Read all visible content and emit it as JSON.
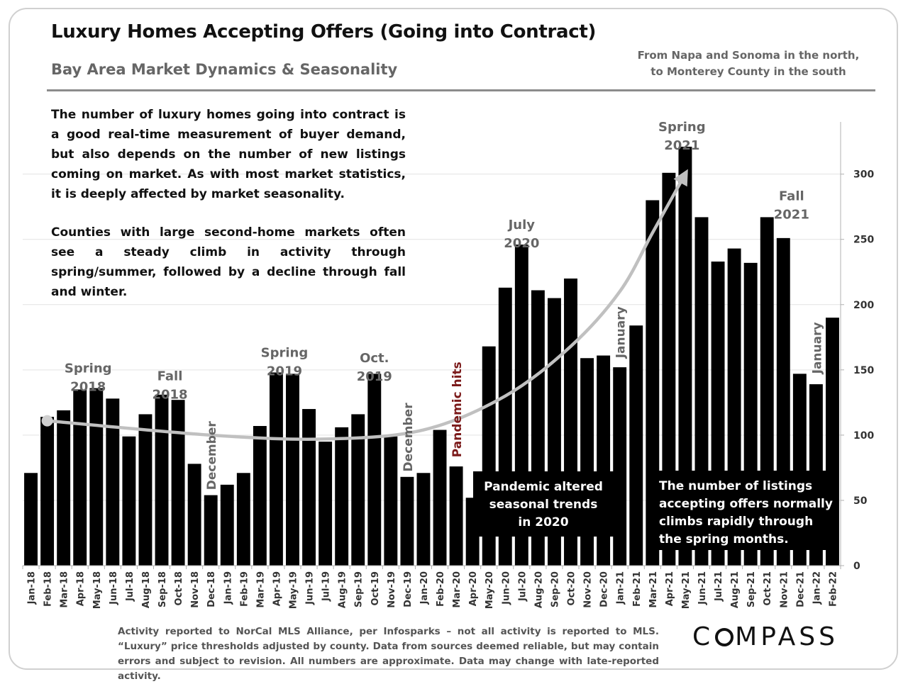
{
  "header": {
    "title": "Luxury Homes Accepting Offers (Going into Contract)",
    "subtitle": "Bay Area Market Dynamics & Seasonality",
    "region_line1": "From Napa and Sonoma in the north,",
    "region_line2": "to Monterey County in the south"
  },
  "description": {
    "paragraph1": "The number of luxury homes going into contract is a good real-time measurement of buyer demand, but also depends on the number of new listings coming on market. As with most market statistics, it is deeply affected by market seasonality.",
    "paragraph2": "Counties with large second-home markets often see a steady climb in activity through spring/summer, followed by a decline through fall and winter."
  },
  "footnote": "Activity reported to NorCal MLS Alliance, per Infosparks – not all activity is reported to MLS. “Luxury” price thresholds adjusted by county. Data from sources deemed reliable, but may contain errors and subject to revision. All numbers are approximate. Data may change with late-reported activity.",
  "logo": {
    "before": "C",
    "after": "MPASS"
  },
  "colors": {
    "bar": "#000000",
    "trend": "#c0c0c0",
    "annotation": "#666666",
    "pandemic": "#7b1a1a",
    "grid": "#e3e3e3"
  },
  "chart_data": {
    "type": "bar",
    "categories": [
      "Jan-18",
      "Feb-18",
      "Mar-18",
      "Apr-18",
      "May-18",
      "Jun-18",
      "Jul-18",
      "Aug-18",
      "Sep-18",
      "Oct-18",
      "Nov-18",
      "Dec-18",
      "Jan-19",
      "Feb-19",
      "Mar-19",
      "Apr-19",
      "May-19",
      "Jun-19",
      "Jul-19",
      "Aug-19",
      "Sep-19",
      "Oct-19",
      "Nov-19",
      "Dec-19",
      "Jan-20",
      "Feb-20",
      "Mar-20",
      "Apr-20",
      "May-20",
      "Jun-20",
      "Jul-20",
      "Aug-20",
      "Sep-20",
      "Oct-20",
      "Nov-20",
      "Dec-20",
      "Jan-21",
      "Feb-21",
      "Mar-21",
      "Apr-21",
      "May-21",
      "Jun-21",
      "Jul-21",
      "Aug-21",
      "Sep-21",
      "Oct-21",
      "Nov-21",
      "Dec-21",
      "Jan-22",
      "Feb-22"
    ],
    "values": [
      71,
      114,
      119,
      135,
      136,
      128,
      99,
      116,
      131,
      127,
      78,
      54,
      62,
      71,
      107,
      148,
      147,
      120,
      95,
      106,
      116,
      147,
      99,
      68,
      71,
      104,
      76,
      52,
      168,
      213,
      246,
      211,
      205,
      220,
      159,
      161,
      152,
      184,
      280,
      301,
      321,
      267,
      233,
      243,
      232,
      267,
      251,
      147,
      139,
      190
    ],
    "ylim": [
      0,
      340
    ],
    "yticks": [
      0,
      50,
      100,
      150,
      200,
      250,
      300
    ],
    "grid": true,
    "yaxis_side": "right",
    "trend_arrow": {
      "points": [
        [
          1,
          111
        ],
        [
          11,
          100
        ],
        [
          18,
          97
        ],
        [
          24,
          104
        ],
        [
          29,
          130
        ],
        [
          33,
          168
        ],
        [
          36,
          210
        ],
        [
          38,
          255
        ],
        [
          40,
          300
        ]
      ]
    },
    "annotations": [
      {
        "lines": [
          "Spring",
          "2018"
        ],
        "x": 3.5,
        "y": 148
      },
      {
        "lines": [
          "Fall",
          "2018"
        ],
        "x": 8.5,
        "y": 142
      },
      {
        "lines": [
          "Spring",
          "2019"
        ],
        "x": 15.5,
        "y": 160
      },
      {
        "lines": [
          "Oct.",
          "2019"
        ],
        "x": 21,
        "y": 156
      },
      {
        "lines": [
          "July",
          "2020"
        ],
        "x": 30,
        "y": 258
      },
      {
        "lines": [
          "Spring",
          "2021"
        ],
        "x": 39.8,
        "y": 333
      },
      {
        "lines": [
          "Fall",
          "2021"
        ],
        "x": 46.5,
        "y": 280
      }
    ],
    "vertical_annotations": [
      {
        "text": "December",
        "x": 11.3,
        "y": 58,
        "color_key": "annotation"
      },
      {
        "text": "December",
        "x": 23.3,
        "y": 72,
        "color_key": "annotation"
      },
      {
        "text": "Pandemic hits",
        "x": 26.3,
        "y": 83,
        "color_key": "pandemic"
      },
      {
        "text": "January",
        "x": 36.3,
        "y": 159,
        "color_key": "annotation"
      },
      {
        "text": "January",
        "x": 48.3,
        "y": 147,
        "color_key": "annotation"
      }
    ],
    "callouts": [
      {
        "lines": [
          "Pandemic altered",
          "seasonal trends",
          "in 2020"
        ],
        "align": "middle"
      },
      {
        "lines": [
          "The  number  of  listings",
          "accepting  offers  normally",
          "climbs    rapidly    through",
          "the spring months."
        ],
        "align": "start"
      }
    ]
  }
}
